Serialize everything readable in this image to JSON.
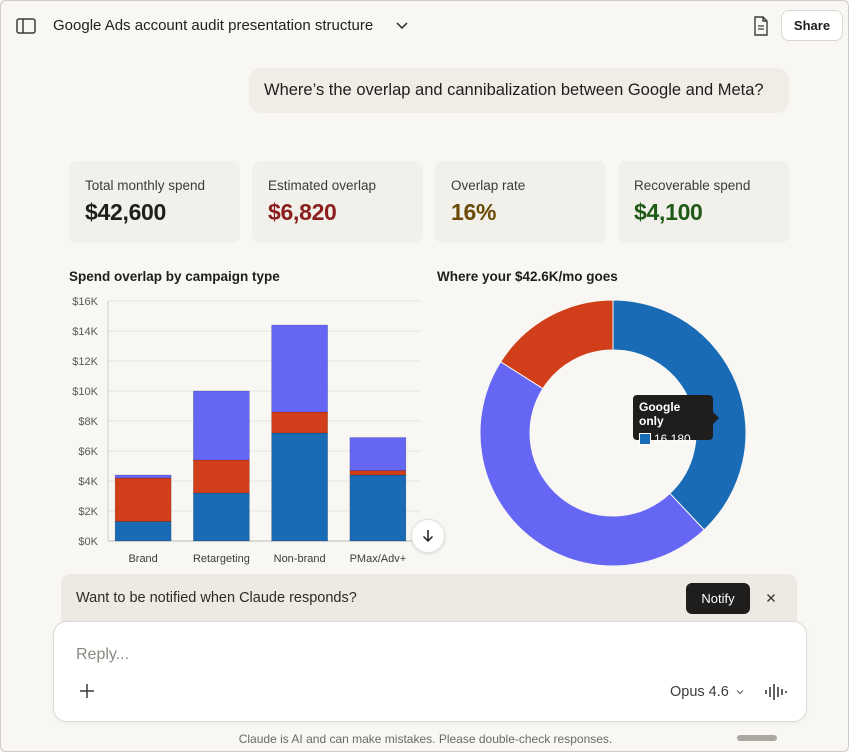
{
  "header": {
    "title": "Google Ads account audit presentation structure",
    "share_label": "Share",
    "icons": [
      "sidebar-toggle-icon",
      "chevron-down-icon",
      "document-icon"
    ]
  },
  "conversation": {
    "user_message": "Where’s the overlap and cannibalization between Google and Meta?"
  },
  "stats": [
    {
      "label": "Total monthly spend",
      "value": "$42,600",
      "color": "#1f1e1d"
    },
    {
      "label": "Estimated overlap",
      "value": "$6,820",
      "color": "#8a1f1d"
    },
    {
      "label": "Overlap rate",
      "value": "16%",
      "color": "#6b4a05"
    },
    {
      "label": "Recoverable spend",
      "value": "$4,100",
      "color": "#1f5a16"
    }
  ],
  "chart_data": [
    {
      "type": "bar",
      "stacked": true,
      "title": "Spend overlap by campaign type",
      "categories": [
        "Brand",
        "Retargeting",
        "Non-brand",
        "PMax/Adv+"
      ],
      "series": [
        {
          "values": [
            1300,
            3200,
            7200,
            4400
          ],
          "color": "#1a6bb5"
        },
        {
          "values": [
            2900,
            2200,
            1400,
            300
          ],
          "color": "#d13f1a"
        },
        {
          "values": [
            200,
            4600,
            5800,
            2200
          ],
          "color": "#6666f5"
        }
      ],
      "ylim": [
        0,
        16000
      ],
      "yticks": [
        "$0K",
        "$2K",
        "$4K",
        "$6K",
        "$8K",
        "$10K",
        "$12K",
        "$14K",
        "$16K"
      ],
      "grid": true
    },
    {
      "type": "pie",
      "donut": true,
      "title": "Where your $42.6K/mo goes",
      "slices": [
        {
          "label": "Google only",
          "value": 16180,
          "color": "#1a6bb5"
        },
        {
          "value": 19600,
          "color": "#6666f5"
        },
        {
          "value": 6820,
          "color": "#d13f1a"
        }
      ],
      "tooltip": {
        "label": "Google only",
        "value": "16,180"
      }
    }
  ],
  "notify": {
    "text": "Want to be notified when Claude responds?",
    "button_label": "Notify"
  },
  "composer": {
    "placeholder": "Reply...",
    "model": "Opus 4.6"
  },
  "footer": {
    "disclaimer": "Claude is AI and can make mistakes. Please double-check responses."
  }
}
